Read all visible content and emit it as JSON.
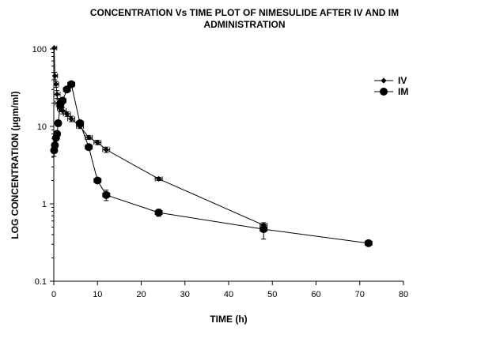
{
  "chart_data": {
    "type": "scatter",
    "title_lines": [
      "CONCENTRATION Vs TIME PLOT OF NIMESULIDE AFTER IV AND IM",
      "ADMINISTRATION"
    ],
    "xlabel": "TIME (h)",
    "ylabel": "LOG CONCENTRATION (µgm/ml)",
    "xlim": [
      0,
      80
    ],
    "ylim": [
      0.1,
      100
    ],
    "yscale": "log",
    "xticks": [
      0,
      10,
      20,
      30,
      40,
      50,
      60,
      70,
      80
    ],
    "yticks": [
      0.1,
      1,
      10,
      100
    ],
    "ytick_labels": [
      "0.1",
      "1",
      "10",
      "100"
    ],
    "grid": false,
    "legend_position": "right",
    "series": [
      {
        "name": "IV",
        "marker": "diamond",
        "points": [
          {
            "x": 0.083,
            "y": 103,
            "xerr": 0.6,
            "yerr_lo": 0,
            "yerr_hi": 0
          },
          {
            "x": 0.25,
            "y": 45,
            "xerr": 0.6,
            "yerr_lo": 5,
            "yerr_hi": 5
          },
          {
            "x": 0.5,
            "y": 35,
            "xerr": 0.6,
            "yerr_lo": 3,
            "yerr_hi": 3
          },
          {
            "x": 0.75,
            "y": 26,
            "xerr": 0.7,
            "yerr_lo": 3,
            "yerr_hi": 3
          },
          {
            "x": 1,
            "y": 20,
            "xerr": 0.7,
            "yerr_lo": 2,
            "yerr_hi": 2
          },
          {
            "x": 1.5,
            "y": 17,
            "xerr": 0.7,
            "yerr_lo": 1.5,
            "yerr_hi": 1.5
          },
          {
            "x": 2,
            "y": 16,
            "xerr": 0.8,
            "yerr_lo": 1.5,
            "yerr_hi": 1.5
          },
          {
            "x": 3,
            "y": 14.5,
            "xerr": 0.8,
            "yerr_lo": 1,
            "yerr_hi": 1
          },
          {
            "x": 4,
            "y": 12.5,
            "xerr": 0.8,
            "yerr_lo": 1,
            "yerr_hi": 1
          },
          {
            "x": 6,
            "y": 10,
            "xerr": 0.8,
            "yerr_lo": 0.6,
            "yerr_hi": 0.6
          },
          {
            "x": 8,
            "y": 7.2,
            "xerr": 0.8,
            "yerr_lo": 0.4,
            "yerr_hi": 0.4
          },
          {
            "x": 10,
            "y": 6.2,
            "xerr": 0.8,
            "yerr_lo": 0.4,
            "yerr_hi": 0.4
          },
          {
            "x": 12,
            "y": 5,
            "xerr": 0.8,
            "yerr_lo": 0.4,
            "yerr_hi": 0.4
          },
          {
            "x": 24,
            "y": 2.1,
            "xerr": 0.8,
            "yerr_lo": 0.1,
            "yerr_hi": 0.1
          },
          {
            "x": 48,
            "y": 0.53,
            "xerr": 0.8,
            "yerr_lo": 0.04,
            "yerr_hi": 0.04
          }
        ]
      },
      {
        "name": "IM",
        "marker": "circle",
        "points": [
          {
            "x": 0.083,
            "y": 4.9,
            "xerr": 0.6,
            "yerr_lo": 0.8,
            "yerr_hi": 0.8
          },
          {
            "x": 0.25,
            "y": 5.7,
            "xerr": 0.6,
            "yerr_lo": 0.5,
            "yerr_hi": 0.5
          },
          {
            "x": 0.5,
            "y": 7.1,
            "xerr": 0.6,
            "yerr_lo": 0.5,
            "yerr_hi": 0.5
          },
          {
            "x": 0.75,
            "y": 8,
            "xerr": 0.7,
            "yerr_lo": 0.5,
            "yerr_hi": 0.5
          },
          {
            "x": 1,
            "y": 11,
            "xerr": 0.7,
            "yerr_lo": 1,
            "yerr_hi": 1
          },
          {
            "x": 1.5,
            "y": 19,
            "xerr": 0.7,
            "yerr_lo": 2,
            "yerr_hi": 2
          },
          {
            "x": 2,
            "y": 21.5,
            "xerr": 0.8,
            "yerr_lo": 2,
            "yerr_hi": 2
          },
          {
            "x": 3,
            "y": 30,
            "xerr": 0.8,
            "yerr_lo": 2,
            "yerr_hi": 2
          },
          {
            "x": 4,
            "y": 35,
            "xerr": 0.8,
            "yerr_lo": 2,
            "yerr_hi": 2
          },
          {
            "x": 6,
            "y": 11,
            "xerr": 0.8,
            "yerr_lo": 1,
            "yerr_hi": 1
          },
          {
            "x": 8,
            "y": 5.4,
            "xerr": 0.8,
            "yerr_lo": 0.3,
            "yerr_hi": 0.3
          },
          {
            "x": 10,
            "y": 2,
            "xerr": 0.8,
            "yerr_lo": 0.15,
            "yerr_hi": 0.15
          },
          {
            "x": 12,
            "y": 1.3,
            "xerr": 0.8,
            "yerr_lo": 0.2,
            "yerr_hi": 0.2
          },
          {
            "x": 24,
            "y": 0.77,
            "xerr": 0.8,
            "yerr_lo": 0.08,
            "yerr_hi": 0.08
          },
          {
            "x": 48,
            "y": 0.47,
            "xerr": 0.8,
            "yerr_lo": 0.12,
            "yerr_hi": 0.08
          },
          {
            "x": 72,
            "y": 0.31,
            "xerr": 0.8,
            "yerr_lo": 0.01,
            "yerr_hi": 0.01
          }
        ]
      }
    ]
  }
}
